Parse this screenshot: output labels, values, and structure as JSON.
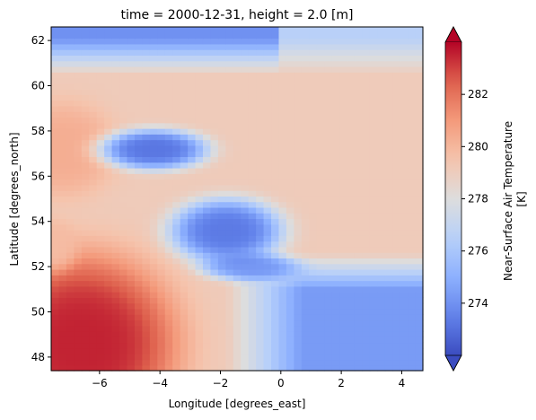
{
  "chart_data": {
    "type": "heatmap",
    "title": "time = 2000-12-31, height = 2.0 [m]",
    "xlabel": "Longitude [degrees_east]",
    "ylabel": "Latitude [degrees_north]",
    "xlim": [
      -7.6,
      4.7
    ],
    "ylim": [
      47.4,
      62.6
    ],
    "xticks": [
      -6,
      -4,
      -2,
      0,
      2,
      4
    ],
    "xtick_labels": [
      "−6",
      "−4",
      "−2",
      "0",
      "2",
      "4"
    ],
    "yticks": [
      48,
      50,
      52,
      54,
      56,
      58,
      60,
      62
    ],
    "ytick_labels": [
      "48",
      "50",
      "52",
      "54",
      "56",
      "58",
      "60",
      "62"
    ],
    "colorbar": {
      "label_line1": "Near-Surface Air Temperature",
      "label_line2": "[K]",
      "vmin": 272,
      "vmax": 284,
      "extend": "both",
      "ticks": [
        274,
        276,
        278,
        280,
        282
      ],
      "tick_labels": [
        "274",
        "276",
        "278",
        "280",
        "282"
      ],
      "colormap": "coolwarm"
    },
    "grid": {
      "nx": 49,
      "ny": 61,
      "description_note": "field values in K on a regular lon/lat grid, approximated from the image",
      "base_value": 279.1,
      "regions": [
        {
          "type": "sea_north_cold",
          "lat_min": 61.0,
          "value": 274.0
        },
        {
          "type": "atlantic_warm",
          "value": 280.3
        },
        {
          "type": "channel_southwest_hot",
          "value": 283.5
        },
        {
          "type": "continent_southeast_cold",
          "value": 274.3
        },
        {
          "type": "scotland_cold",
          "value": 273.2
        },
        {
          "type": "england_cold",
          "value": 273.3
        },
        {
          "type": "ireland_cool",
          "value": 279.8
        }
      ]
    }
  }
}
